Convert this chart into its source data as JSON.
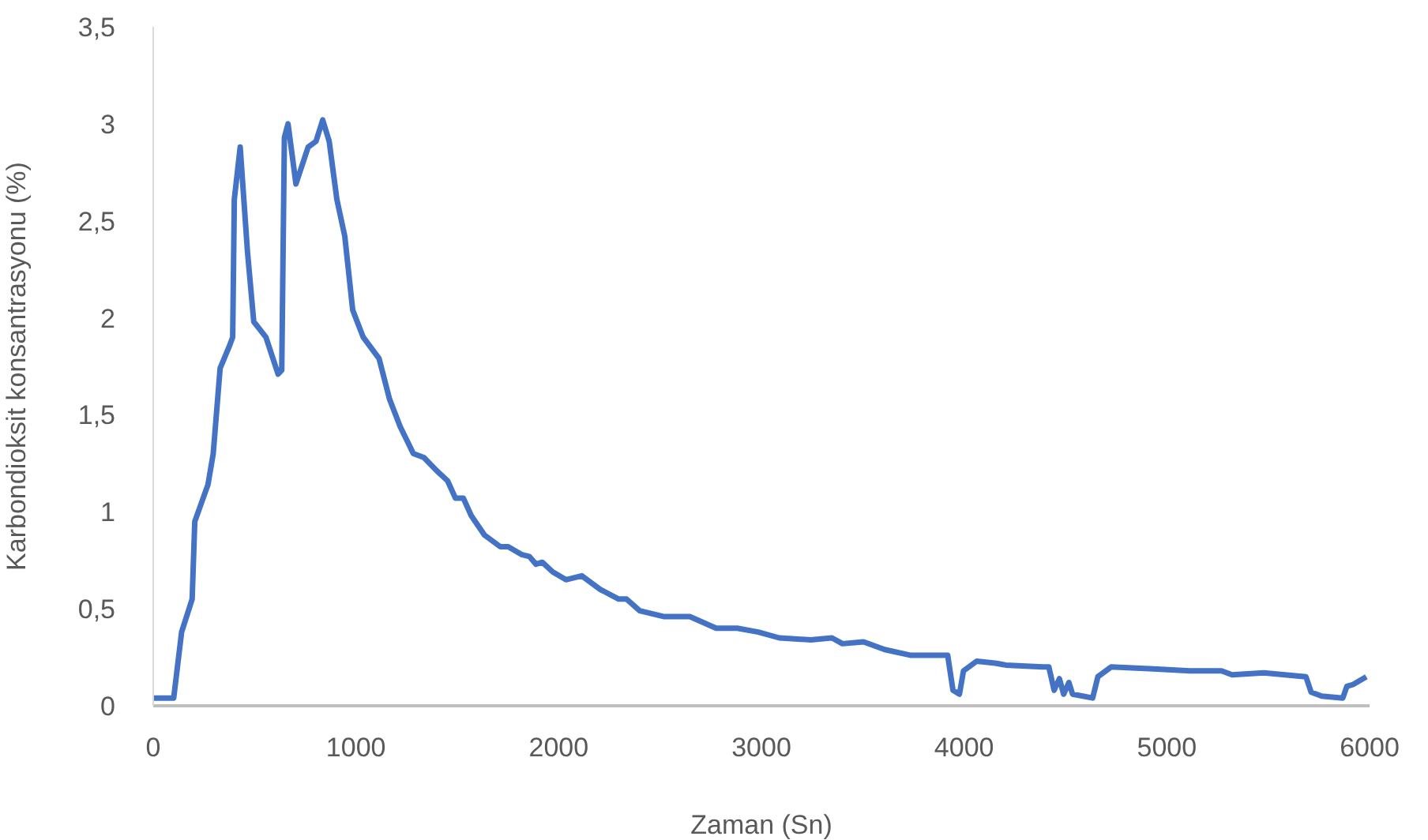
{
  "chart_data": {
    "type": "line",
    "xlabel": "Zaman (Sn)",
    "ylabel": "Karbondioksit konsantrasyonu (%)",
    "xlim": [
      0,
      6000
    ],
    "xticks": [
      0,
      1000,
      2000,
      3000,
      4000,
      5000,
      6000
    ],
    "ylim": [
      0,
      3.5
    ],
    "yticks": [
      {
        "value": 0,
        "label": "0"
      },
      {
        "value": 0.5,
        "label": "0,5"
      },
      {
        "value": 1,
        "label": "1"
      },
      {
        "value": 1.5,
        "label": "1,5"
      },
      {
        "value": 2,
        "label": "2"
      },
      {
        "value": 2.5,
        "label": "2,5"
      },
      {
        "value": 3,
        "label": "3"
      },
      {
        "value": 3.5,
        "label": "3,5"
      }
    ],
    "grid": false,
    "legend": false,
    "marker": "none",
    "line_style": "solid",
    "series": [
      {
        "color": "#4472c4",
        "x": [
          0,
          101,
          140,
          192,
          205,
          270,
          296,
          330,
          374,
          392,
          400,
          429,
          465,
          496,
          556,
          616,
          634,
          647,
          665,
          704,
          764,
          803,
          836,
          868,
          906,
          945,
          984,
          1036,
          1114,
          1166,
          1218,
          1283,
          1335,
          1400,
          1452,
          1491,
          1530,
          1569,
          1634,
          1712,
          1751,
          1816,
          1855,
          1888,
          1919,
          1971,
          2036,
          2114,
          2205,
          2296,
          2335,
          2400,
          2517,
          2647,
          2777,
          2881,
          2985,
          3088,
          3244,
          3348,
          3400,
          3504,
          3608,
          3738,
          3919,
          3945,
          3977,
          3997,
          4062,
          4153,
          4205,
          4387,
          4418,
          4444,
          4470,
          4491,
          4517,
          4535,
          4634,
          4660,
          4725,
          4933,
          5114,
          5270,
          5322,
          5478,
          5686,
          5712,
          5764,
          5868,
          5888,
          5919,
          5984
        ],
        "values": [
          0.04,
          0.04,
          0.38,
          0.55,
          0.95,
          1.14,
          1.3,
          1.74,
          1.85,
          1.9,
          2.61,
          2.88,
          2.34,
          1.98,
          1.9,
          1.71,
          1.73,
          2.93,
          3.0,
          2.69,
          2.88,
          2.91,
          3.02,
          2.91,
          2.61,
          2.42,
          2.04,
          1.9,
          1.79,
          1.58,
          1.44,
          1.3,
          1.28,
          1.21,
          1.16,
          1.07,
          1.07,
          0.98,
          0.88,
          0.82,
          0.82,
          0.78,
          0.77,
          0.73,
          0.74,
          0.69,
          0.65,
          0.67,
          0.6,
          0.55,
          0.55,
          0.49,
          0.46,
          0.46,
          0.4,
          0.4,
          0.38,
          0.35,
          0.34,
          0.35,
          0.32,
          0.33,
          0.29,
          0.26,
          0.26,
          0.08,
          0.06,
          0.18,
          0.23,
          0.22,
          0.21,
          0.2,
          0.2,
          0.08,
          0.14,
          0.06,
          0.12,
          0.06,
          0.04,
          0.15,
          0.2,
          0.19,
          0.18,
          0.18,
          0.16,
          0.17,
          0.15,
          0.07,
          0.05,
          0.04,
          0.1,
          0.11,
          0.15
        ]
      }
    ]
  }
}
